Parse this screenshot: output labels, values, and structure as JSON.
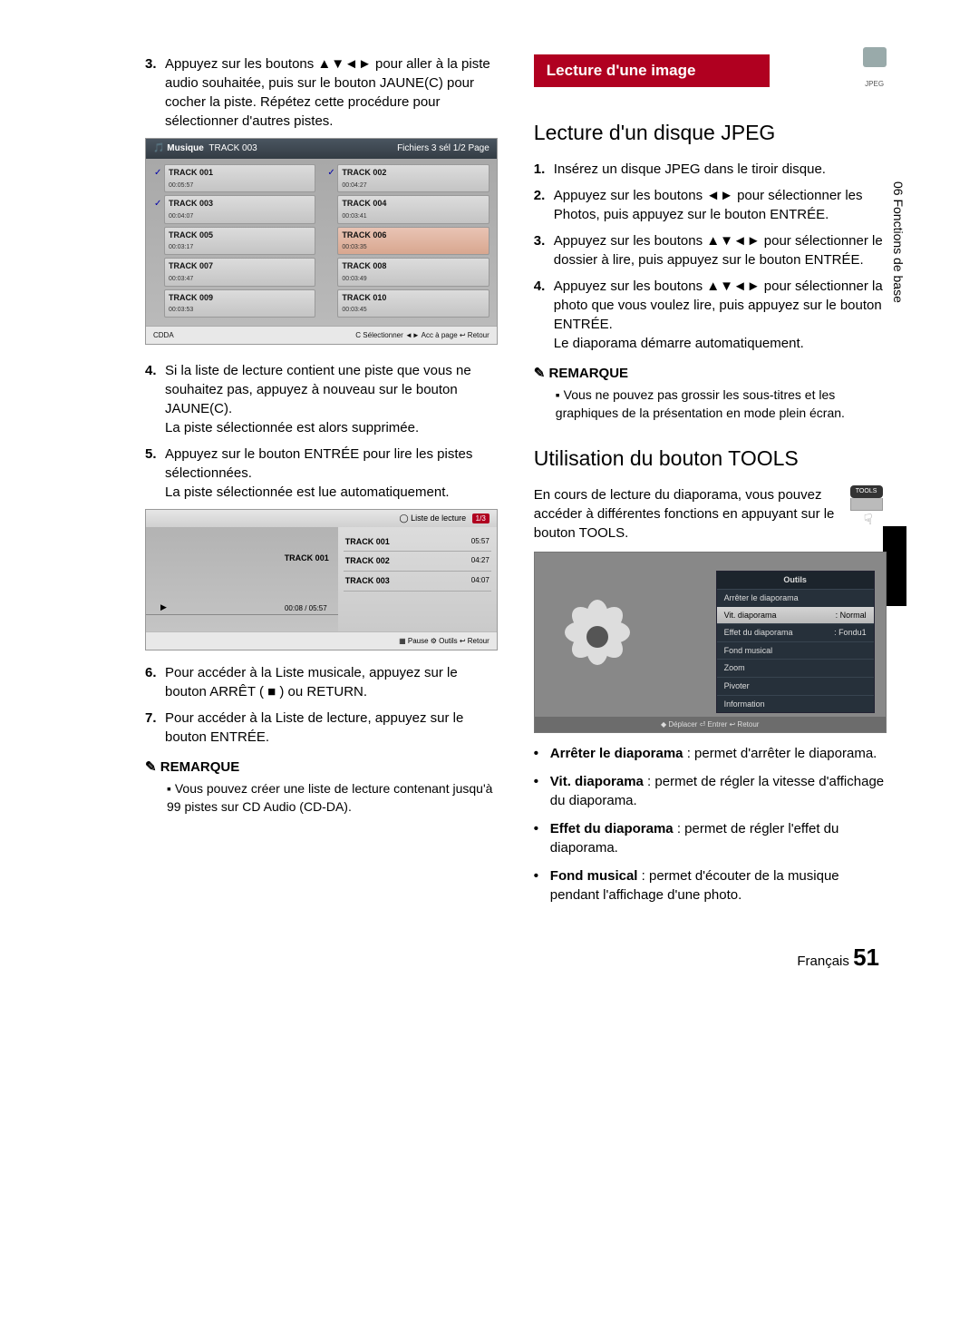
{
  "sidetab": "06   Fonctions de base",
  "left": {
    "step3": {
      "num": "3.",
      "text": "Appuyez sur les boutons ▲▼◄► pour aller à la piste audio souhaitée, puis sur le bouton JAUNE(C) pour cocher la piste. Répétez cette procédure pour sélectionner d'autres pistes."
    },
    "step4": {
      "num": "4.",
      "text": "Si la liste de lecture contient une piste que vous ne souhaitez pas, appuyez à nouveau sur le bouton JAUNE(C).",
      "text2": "La piste sélectionnée est alors supprimée."
    },
    "step5": {
      "num": "5.",
      "text": "Appuyez sur le bouton ENTRÉE pour lire les pistes sélectionnées.",
      "text2": "La piste sélectionnée est lue automatiquement."
    },
    "step6": {
      "num": "6.",
      "text": "Pour accéder à la Liste musicale, appuyez sur le bouton ARRÊT ( ■ ) ou RETURN."
    },
    "step7": {
      "num": "7.",
      "text": "Pour accéder à la Liste de lecture, appuyez sur le bouton ENTRÉE."
    },
    "remarqueLabel": "REMARQUE",
    "remarqueText": "Vous pouvez créer une liste de lecture contenant jusqu'à 99 pistes sur CD Audio (CD-DA).",
    "musicPanel": {
      "title": "Musique",
      "currentTrack": "TRACK 003",
      "pageInfo": "Fichiers 3 sél   1/2 Page",
      "colL": [
        {
          "name": "TRACK 001",
          "dur": "00:05:57",
          "checked": true
        },
        {
          "name": "TRACK 003",
          "dur": "00:04:07",
          "checked": true
        },
        {
          "name": "TRACK 005",
          "dur": "00:03:17"
        },
        {
          "name": "TRACK 007",
          "dur": "00:03:47"
        },
        {
          "name": "TRACK 009",
          "dur": "00:03:53"
        }
      ],
      "colR": [
        {
          "name": "TRACK 002",
          "dur": "00:04:27",
          "checked": true
        },
        {
          "name": "TRACK 004",
          "dur": "00:03:41"
        },
        {
          "name": "TRACK 006",
          "dur": "00:03:35",
          "hl": true
        },
        {
          "name": "TRACK 008",
          "dur": "00:03:49"
        },
        {
          "name": "TRACK 010",
          "dur": "00:03:45"
        }
      ],
      "botLeft": "CDDA",
      "botRight": "C Sélectionner   ◄► Acc à page   ↩ Retour"
    },
    "playPanel": {
      "playlistLabel": "Liste de lecture",
      "playlistCount": "1/3",
      "now": "TRACK 001",
      "time": "00:08 / 05:57",
      "items": [
        {
          "name": "TRACK 001",
          "dur": "05:57"
        },
        {
          "name": "TRACK 002",
          "dur": "04:27"
        },
        {
          "name": "TRACK 003",
          "dur": "04:07"
        }
      ],
      "bot": "▦ Pause   ⚙ Outils   ↩ Retour"
    }
  },
  "right": {
    "banner": "Lecture d'une image",
    "jpegLabel": "JPEG",
    "h2a": "Lecture d'un disque JPEG",
    "s1": {
      "num": "1.",
      "text": "Insérez un disque JPEG dans le tiroir disque."
    },
    "s2": {
      "num": "2.",
      "text": "Appuyez sur les boutons ◄► pour sélectionner les Photos, puis appuyez sur le bouton ENTRÉE."
    },
    "s3": {
      "num": "3.",
      "text": "Appuyez sur les boutons ▲▼◄► pour sélectionner le dossier à lire, puis appuyez sur le bouton ENTRÉE."
    },
    "s4": {
      "num": "4.",
      "text": "Appuyez sur les boutons ▲▼◄► pour sélectionner la photo que vous voulez lire, puis appuyez sur le bouton ENTRÉE.",
      "text2": "Le diaporama démarre automatiquement."
    },
    "remarqueLabel": "REMARQUE",
    "remarqueText": "Vous ne pouvez pas grossir les sous-titres et les graphiques de la présentation en mode plein écran.",
    "h2b": "Utilisation du bouton TOOLS",
    "toolsPara": "En cours de lecture du diaporama, vous pouvez accéder à différentes fonctions en appuyant sur le bouton TOOLS.",
    "toolsBtnCap": "TOOLS",
    "toolsPanel": {
      "hdr": "Outils",
      "rows": [
        {
          "l": "Arrêter le diaporama",
          "r": ""
        },
        {
          "l": "Vit. diaporama",
          "r": ": Normal",
          "sel": true
        },
        {
          "l": "Effet du diaporama",
          "r": ": Fondu1"
        },
        {
          "l": "Fond musical",
          "r": ""
        },
        {
          "l": "Zoom",
          "r": ""
        },
        {
          "l": "Pivoter",
          "r": ""
        },
        {
          "l": "Information",
          "r": ""
        }
      ],
      "bot": "◆ Déplacer   ⏎ Entrer   ↩ Retour"
    },
    "bullets": [
      {
        "b": "Arrêter le diaporama",
        "t": " : permet d'arrêter le diaporama."
      },
      {
        "b": "Vit. diaporama",
        "t": " : permet de régler la vitesse d'affichage du diaporama."
      },
      {
        "b": "Effet du diaporama",
        "t": " : permet de régler l'effet du diaporama."
      },
      {
        "b": "Fond musical",
        "t": " : permet d'écouter de la musique pendant l'affichage d'une photo."
      }
    ]
  },
  "footer": {
    "lang": "Français",
    "page": "51"
  }
}
